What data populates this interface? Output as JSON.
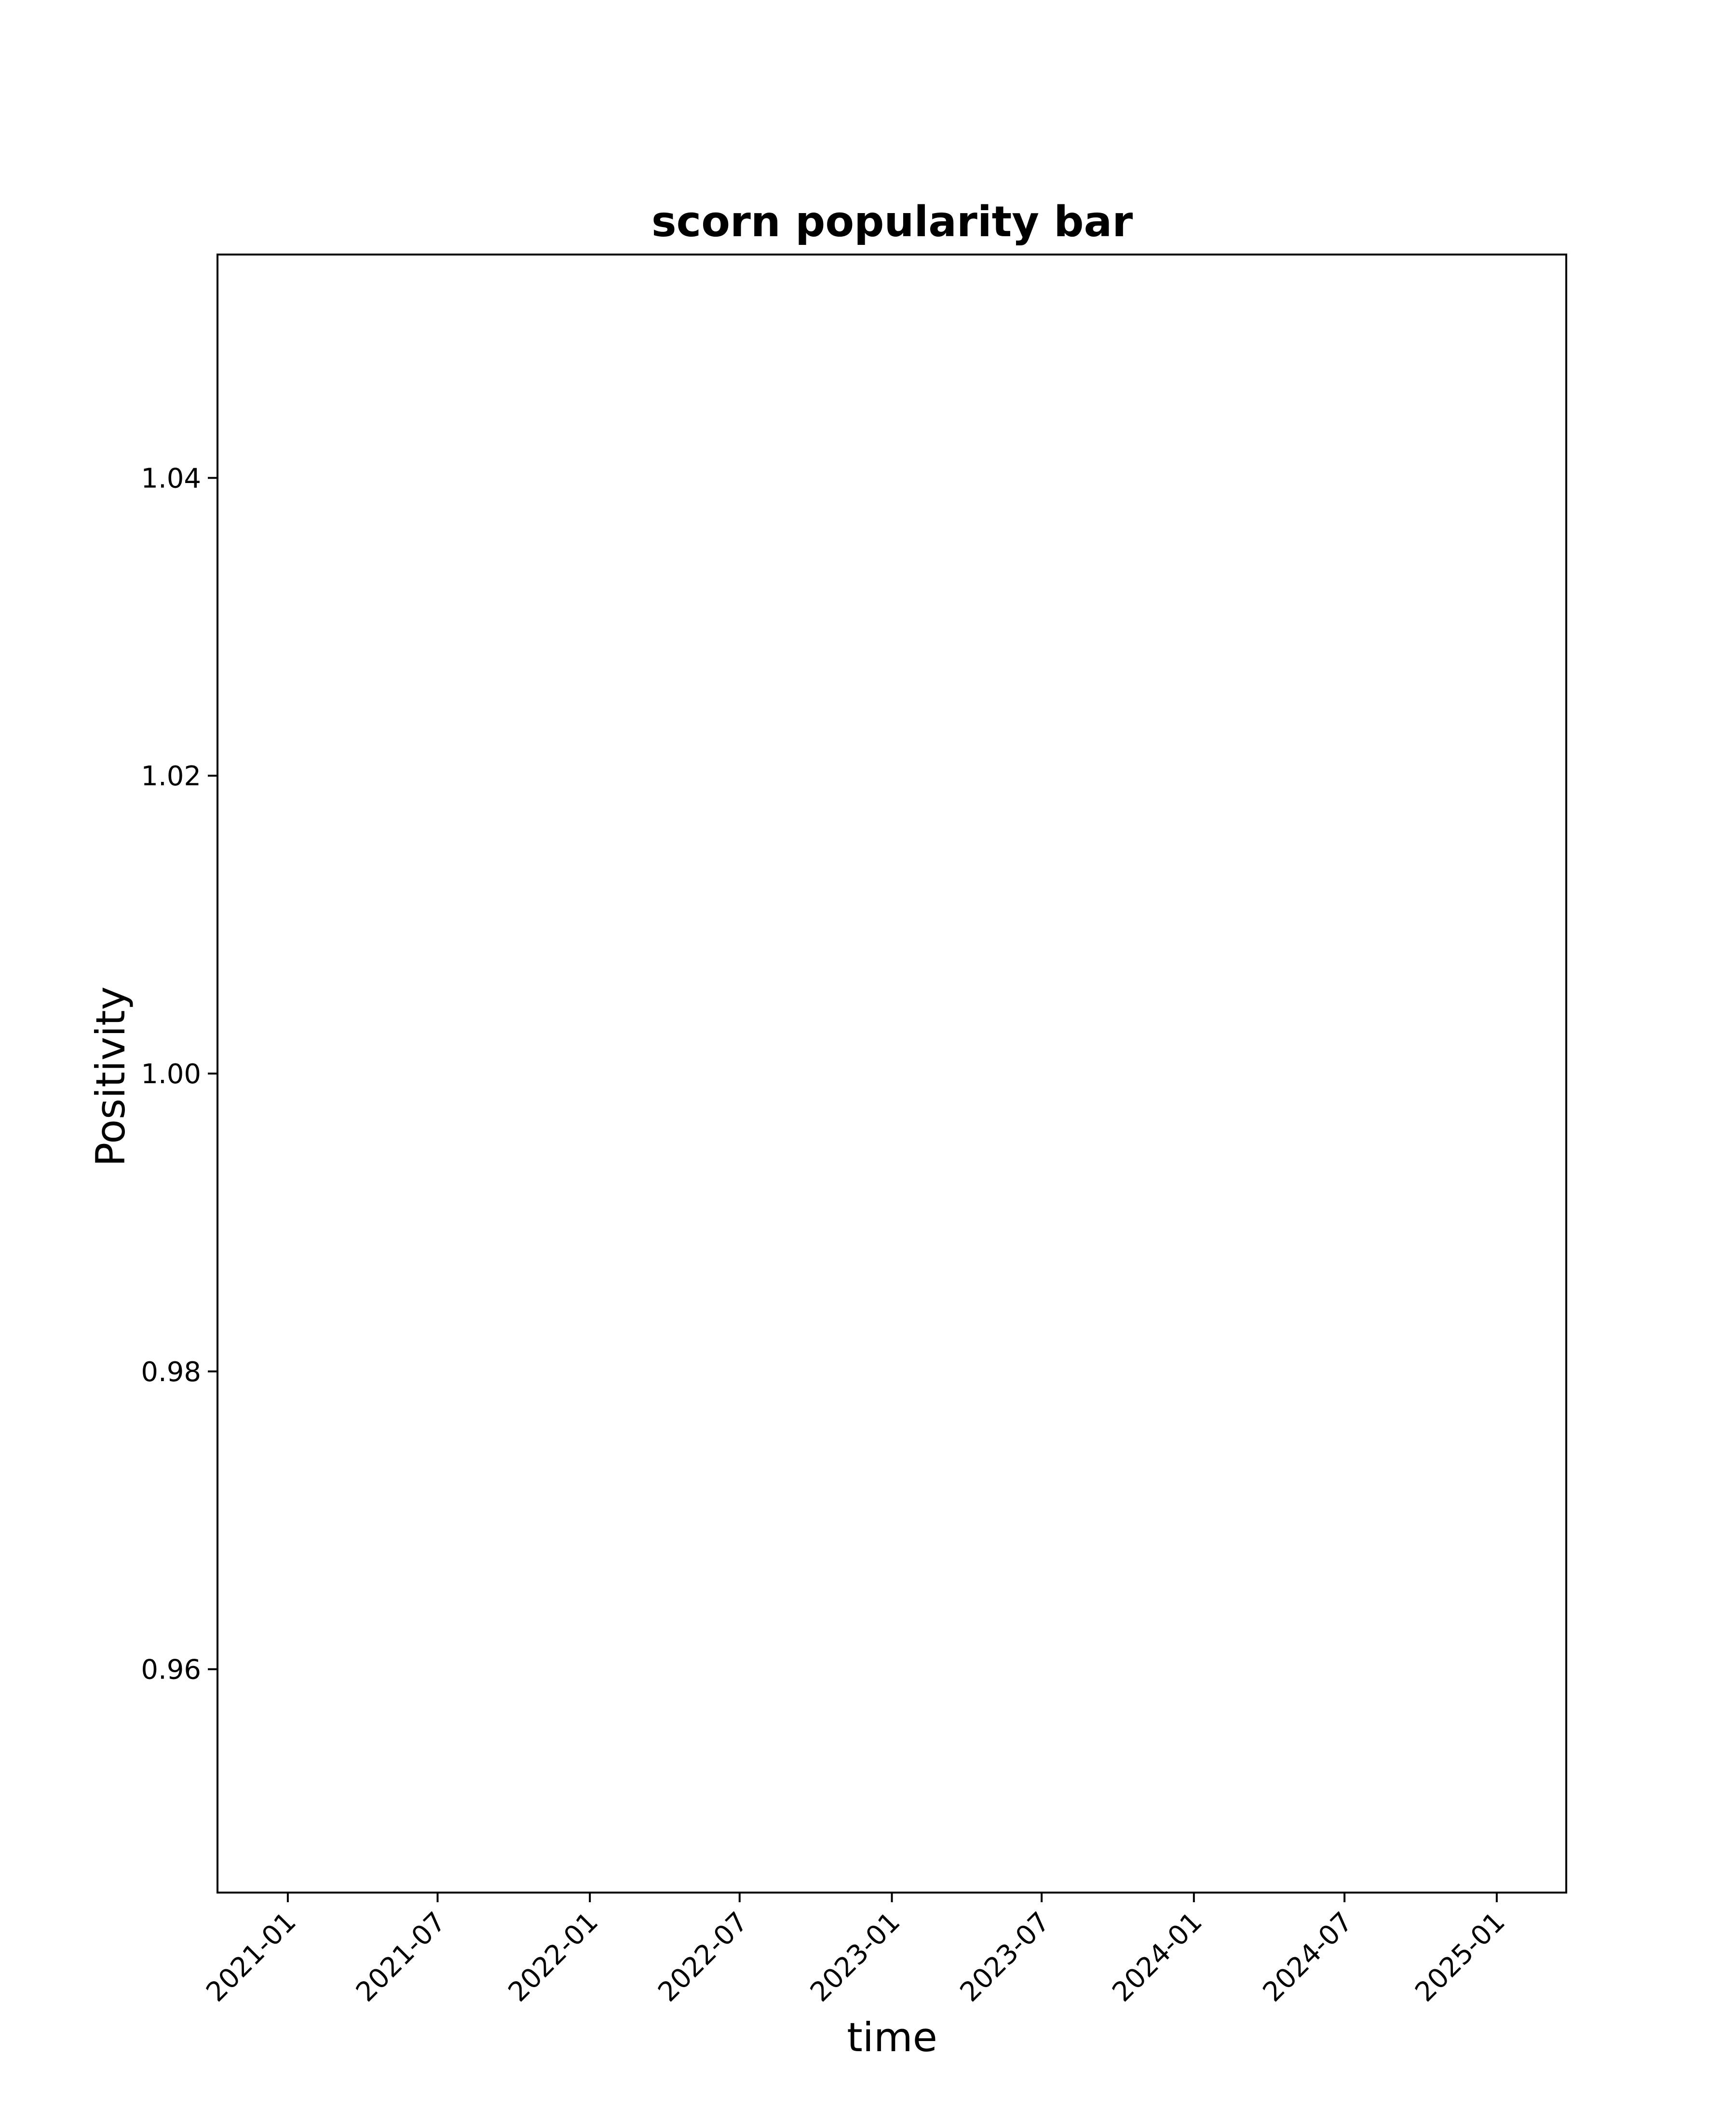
{
  "chart_data": {
    "type": "bar",
    "title": "scorn popularity bar",
    "xlabel": "time",
    "ylabel": "Positivity",
    "x": [],
    "values": [],
    "x_axis": {
      "scale": "date",
      "ticks": [
        "2021-01",
        "2021-07",
        "2022-01",
        "2022-07",
        "2023-01",
        "2023-07",
        "2024-01",
        "2024-07",
        "2025-01"
      ],
      "range": [
        "2020-10-08",
        "2025-03-26"
      ]
    },
    "y_axis": {
      "ticks": [
        "0.96",
        "0.98",
        "1.00",
        "1.02",
        "1.04"
      ],
      "range": [
        0.945,
        1.055
      ]
    },
    "grid": false,
    "legend": "none",
    "colors": {
      "background": "#ffffff",
      "axes": "#000000",
      "text": "#000000"
    }
  }
}
